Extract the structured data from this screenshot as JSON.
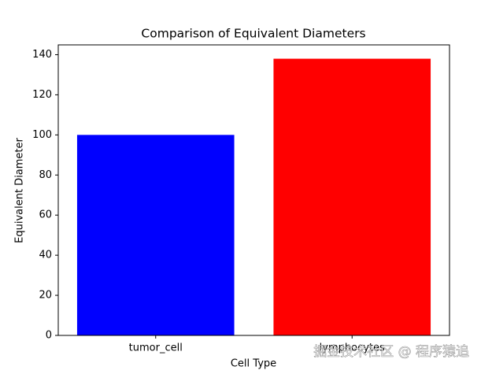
{
  "chart_data": {
    "type": "bar",
    "title": "Comparison of Equivalent Diameters",
    "x_label": "Cell Type",
    "y_label": "Equivalent Diameter",
    "categories": [
      "tumor_cell",
      "lymphocytes"
    ],
    "values": [
      100,
      138
    ],
    "colors": [
      "blue",
      "red"
    ],
    "ylim": [
      0,
      144.9
    ],
    "yticks": [
      0,
      20,
      40,
      60,
      80,
      100,
      120,
      140
    ],
    "grid": false,
    "watermark": "掘金技术社区 @ 程序猿追"
  }
}
